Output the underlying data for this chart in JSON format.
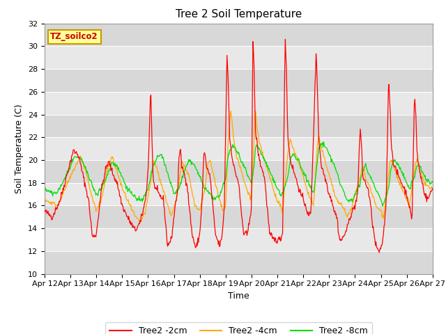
{
  "title": "Tree 2 Soil Temperature",
  "xlabel": "Time",
  "ylabel": "Soil Temperature (C)",
  "ylim": [
    10,
    32
  ],
  "yticks": [
    10,
    12,
    14,
    16,
    18,
    20,
    22,
    24,
    26,
    28,
    30,
    32
  ],
  "x_labels": [
    "Apr 12",
    "Apr 13",
    "Apr 14",
    "Apr 15",
    "Apr 16",
    "Apr 17",
    "Apr 18",
    "Apr 19",
    "Apr 20",
    "Apr 21",
    "Apr 22",
    "Apr 23",
    "Apr 24",
    "Apr 25",
    "Apr 26",
    "Apr 27"
  ],
  "line_colors": [
    "#ff0000",
    "#ffaa00",
    "#00dd00"
  ],
  "line_labels": [
    "Tree2 -2cm",
    "Tree2 -4cm",
    "Tree2 -8cm"
  ],
  "annotation_text": "TZ_soilco2",
  "annotation_bg": "#ffff99",
  "annotation_border": "#cc9900",
  "band_colors": [
    "#d8d8d8",
    "#e8e8e8"
  ],
  "title_fontsize": 11,
  "label_fontsize": 9,
  "tick_fontsize": 8
}
